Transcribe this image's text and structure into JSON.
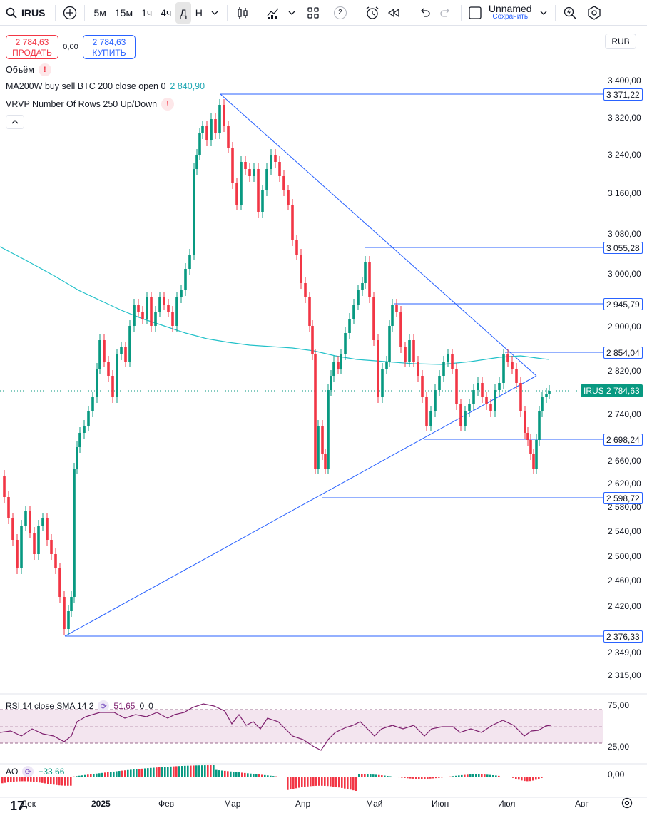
{
  "toolbar": {
    "symbol": "IRUS",
    "intervals": [
      "5м",
      "15м",
      "1ч",
      "4ч",
      "Д",
      "Н"
    ],
    "active_interval": "Д",
    "layouts_count": "2",
    "layout_name": "Unnamed",
    "save_label": "Сохранить"
  },
  "trade": {
    "sell_price": "2 784,63",
    "sell_label": "ПРОДАТЬ",
    "spread": "0,00",
    "buy_price": "2 784,63",
    "buy_label": "КУПИТЬ"
  },
  "currency": "RUB",
  "legends": {
    "volume": "Объём",
    "ma": "MA200W buy sell BTC 200 close open 0",
    "ma_value": "2 840,90",
    "vrvp": "VRVP Number Of Rows 250 Up/Down"
  },
  "price_axis": [
    "3 400,00",
    "3 320,00",
    "3 240,00",
    "3 160,00",
    "3 080,00",
    "3 000,00",
    "2 900,00",
    "2 820,00",
    "2 740,00",
    "2 660,00",
    "2 620,00",
    "2 580,00",
    "2 540,00",
    "2 500,00",
    "2 460,00",
    "2 420,00",
    "2 349,00",
    "2 315,00"
  ],
  "level_tags": [
    "3 371,22",
    "3 055,28",
    "2 945,79",
    "2 854,04",
    "2 698,24",
    "2 598,72",
    "2 376,33"
  ],
  "last_price": {
    "ticker": "IRUS",
    "price": "2 784,63"
  },
  "rsi": {
    "label": "RSI 14 close SMA 14 2",
    "value": "51,65",
    "extra1": "0",
    "extra2": "0",
    "axis": [
      "75,00",
      "25,00"
    ]
  },
  "ao": {
    "label": "AO",
    "value": "−33,66",
    "axis": "0,00"
  },
  "time_axis": [
    "Дек",
    "2025",
    "Фев",
    "Мар",
    "Апр",
    "Май",
    "Июн",
    "Июл",
    "Авг"
  ],
  "colors": {
    "up": "#089981",
    "down": "#f23645",
    "trendline": "#2962ff",
    "ma": "#22c1c9",
    "rsi": "#7e1f6e"
  }
}
